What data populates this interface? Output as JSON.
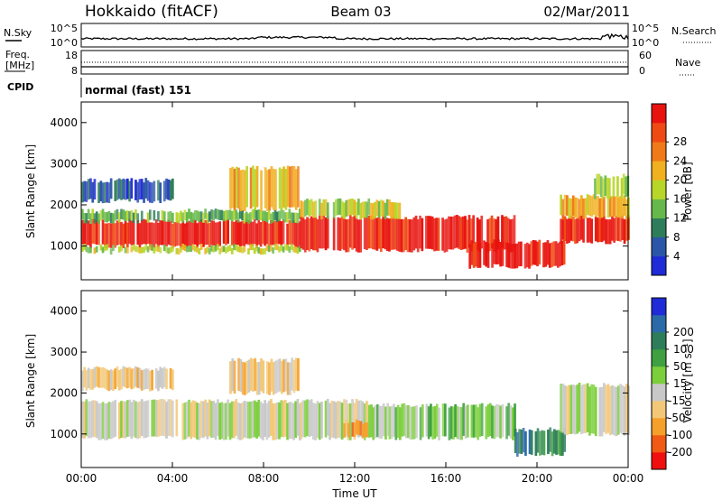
{
  "header": {
    "station": "Hokkaido (fitACF)",
    "beam": "Beam 03",
    "date": "02/Mar/2011"
  },
  "noise_panel": {
    "left_label": "N.Sky",
    "right_label": "N.Search",
    "left_ticks": [
      "10^5",
      "10^0"
    ],
    "right_ticks": [
      "10^5",
      "10^0"
    ]
  },
  "freq_panel": {
    "left_label_line1": "Freq.",
    "left_label_line2": "[MHz]",
    "right_label": "Nave",
    "left_ticks": [
      "18",
      "8"
    ],
    "right_ticks": [
      "60",
      "0"
    ]
  },
  "cpid_panel": {
    "label": "CPID",
    "text": "normal (fast) 151"
  },
  "colors": {
    "power": [
      "#1f2bd6",
      "#2b55a8",
      "#2e7d5a",
      "#66b84a",
      "#b8d62a",
      "#f0b020",
      "#f07a1a",
      "#f04a14",
      "#e8130e"
    ],
    "velocity": [
      "#f01010",
      "#f05a14",
      "#f5a02a",
      "#f2c878",
      "#c8c8c8",
      "#7ccf3c",
      "#3ea040",
      "#2e7d5a",
      "#2b6aa8",
      "#1f2bd6"
    ]
  },
  "chart_data": [
    {
      "type": "heatmap",
      "name": "Power",
      "ylabel": "Slant Range [km]",
      "colorbar_label": "Power [dB]",
      "colorbar_ticks": [
        "4",
        "8",
        "12",
        "16",
        "20",
        "24",
        "28"
      ],
      "x_ticks": [
        "00:00",
        "04:00",
        "08:00",
        "12:00",
        "16:00",
        "20:00",
        "00:00"
      ],
      "y_ticks": [
        "1000",
        "2000",
        "3000",
        "4000"
      ],
      "xlim_hours": [
        0,
        24
      ],
      "ylim_km": [
        180,
        4500
      ],
      "bands": [
        {
          "t0": 0.0,
          "t1": 9.6,
          "r0": 1000,
          "r1": 1600,
          "level": 8
        },
        {
          "t0": 0.0,
          "t1": 9.6,
          "r0": 850,
          "r1": 1000,
          "level": 4
        },
        {
          "t0": 0.0,
          "t1": 9.6,
          "r0": 1600,
          "r1": 1850,
          "level": 3
        },
        {
          "t0": 0.0,
          "t1": 4.0,
          "r0": 2100,
          "r1": 2600,
          "level": 1
        },
        {
          "t0": 6.5,
          "t1": 9.5,
          "r0": 1900,
          "r1": 2900,
          "level": 5
        },
        {
          "t0": 9.6,
          "t1": 19.0,
          "r0": 900,
          "r1": 1700,
          "level": 8
        },
        {
          "t0": 9.6,
          "t1": 14.0,
          "r0": 1700,
          "r1": 2100,
          "level": 4
        },
        {
          "t0": 17.0,
          "t1": 21.2,
          "r0": 500,
          "r1": 1100,
          "level": 8
        },
        {
          "t0": 21.0,
          "t1": 24.0,
          "r0": 1100,
          "r1": 1700,
          "level": 8
        },
        {
          "t0": 21.0,
          "t1": 24.0,
          "r0": 1700,
          "r1": 2200,
          "level": 5
        },
        {
          "t0": 22.5,
          "t1": 24.0,
          "r0": 2200,
          "r1": 2700,
          "level": 4
        }
      ]
    },
    {
      "type": "heatmap",
      "name": "Velocity",
      "ylabel": "Slant Range [km]",
      "colorbar_label": "Velocity [m s⁻¹]",
      "colorbar_ticks": [
        "-200",
        "-100",
        "-50",
        "-15",
        "15",
        "50",
        "100",
        "200"
      ],
      "x_ticks": [
        "00:00",
        "04:00",
        "08:00",
        "12:00",
        "16:00",
        "20:00",
        "00:00"
      ],
      "xlabel": "Time UT",
      "y_ticks": [
        "1000",
        "2000",
        "3000",
        "4000"
      ],
      "xlim_hours": [
        0,
        24
      ],
      "ylim_km": [
        180,
        4500
      ],
      "bands": [
        {
          "t0": 0.0,
          "t1": 9.6,
          "r0": 900,
          "r1": 1800,
          "level": 4
        },
        {
          "t0": 0.0,
          "t1": 4.0,
          "r0": 2100,
          "r1": 2600,
          "level": 3
        },
        {
          "t0": 6.5,
          "t1": 9.5,
          "r0": 2000,
          "r1": 2800,
          "level": 3
        },
        {
          "t0": 9.6,
          "t1": 12.5,
          "r0": 900,
          "r1": 1800,
          "level": 4
        },
        {
          "t0": 11.5,
          "t1": 12.5,
          "r0": 950,
          "r1": 1300,
          "level": 2
        },
        {
          "t0": 12.5,
          "t1": 19.0,
          "r0": 900,
          "r1": 1700,
          "level": 5
        },
        {
          "t0": 19.0,
          "t1": 21.2,
          "r0": 500,
          "r1": 1100,
          "level": 7
        },
        {
          "t0": 21.0,
          "t1": 24.0,
          "r0": 1000,
          "r1": 2200,
          "level": 4
        }
      ]
    }
  ]
}
